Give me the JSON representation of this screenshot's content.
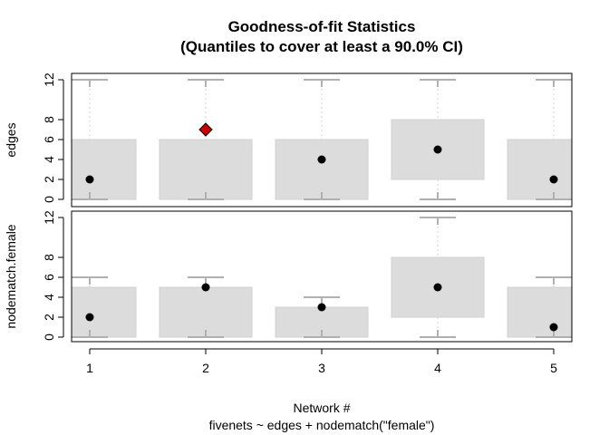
{
  "chart_data": {
    "type": "boxplot",
    "title": "Goodness-of-fit Statistics",
    "subtitle": "(Quantiles to cover at least a 90.0% CI)",
    "xlabel": "Network #",
    "xsublabel": "fivenets ~ edges + nodematch(\"female\")",
    "categories": [
      "1",
      "2",
      "3",
      "4",
      "5"
    ],
    "colors": {
      "box_fill": "#dcdcdc",
      "whisker": "#b0b0b0",
      "guide": "#cfcfcf",
      "point": "#000000",
      "outside_point": "#cc0000"
    },
    "panels": [
      {
        "name": "edges",
        "ylabel": "edges",
        "ylim": [
          0,
          12
        ],
        "yticks": [
          "0",
          "2",
          "4",
          "6",
          "8",
          "12"
        ],
        "intervals": [
          {
            "low": 0,
            "high": 6,
            "whisker_low": 0,
            "whisker_high": 12,
            "observed": 2,
            "outside": false
          },
          {
            "low": 0,
            "high": 6,
            "whisker_low": 0,
            "whisker_high": 12,
            "observed": 7,
            "outside": true
          },
          {
            "low": 0,
            "high": 6,
            "whisker_low": 0,
            "whisker_high": 12,
            "observed": 4,
            "outside": false
          },
          {
            "low": 2,
            "high": 8,
            "whisker_low": 0,
            "whisker_high": 12,
            "observed": 5,
            "outside": false
          },
          {
            "low": 0,
            "high": 6,
            "whisker_low": 0,
            "whisker_high": 12,
            "observed": 2,
            "outside": false
          }
        ]
      },
      {
        "name": "nodematch.female",
        "ylabel": "nodematch.female",
        "ylim": [
          0,
          12
        ],
        "yticks": [
          "0",
          "2",
          "4",
          "6",
          "8",
          "12"
        ],
        "intervals": [
          {
            "low": 0,
            "high": 5,
            "whisker_low": 0,
            "whisker_high": 6,
            "observed": 2,
            "outside": false
          },
          {
            "low": 0,
            "high": 5,
            "whisker_low": 0,
            "whisker_high": 6,
            "observed": 5,
            "outside": false
          },
          {
            "low": 0,
            "high": 3,
            "whisker_low": 0,
            "whisker_high": 4,
            "observed": 3,
            "outside": false
          },
          {
            "low": 2,
            "high": 8,
            "whisker_low": 0,
            "whisker_high": 12,
            "observed": 5,
            "outside": false
          },
          {
            "low": 0,
            "high": 5,
            "whisker_low": 0,
            "whisker_high": 6,
            "observed": 1,
            "outside": false
          }
        ]
      }
    ]
  }
}
